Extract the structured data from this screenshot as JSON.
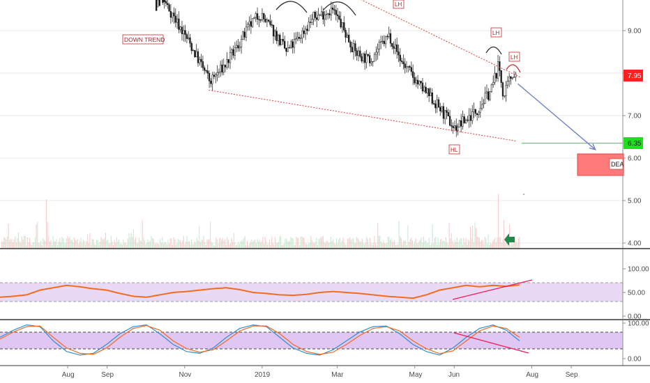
{
  "chart_data": [
    {
      "type": "candlestick",
      "panel": "price",
      "ylim": [
        3.9,
        10.0
      ],
      "x_ticks": [
        "Aug",
        "Sep",
        "Nov",
        "2019",
        "Mar",
        "May",
        "Jun",
        "Aug",
        "Sep"
      ],
      "y_ticks": [
        "9.00",
        "8.00",
        "7.00",
        "6.00",
        "5.00",
        "4.00"
      ],
      "current_price": "7.95",
      "target_price": "6.35",
      "target_box_text": "DEA",
      "annotations": [
        "DOWN TREND",
        "LH",
        "LH",
        "LH",
        "HL"
      ],
      "price_path": [
        {
          "date": "2018-09-12",
          "close": 10.3
        },
        {
          "date": "2018-10-06",
          "close": 10.1
        },
        {
          "date": "2018-10-18",
          "close": 9.6
        },
        {
          "date": "2018-11-05",
          "close": 8.7
        },
        {
          "date": "2018-11-21",
          "close": 7.8
        },
        {
          "date": "2018-12-03",
          "close": 8.2
        },
        {
          "date": "2018-12-12",
          "close": 8.6
        },
        {
          "date": "2018-12-22",
          "close": 9.1
        },
        {
          "date": "2018-12-30",
          "close": 9.4
        },
        {
          "date": "2019-01-12",
          "close": 8.9
        },
        {
          "date": "2019-01-20",
          "close": 8.5
        },
        {
          "date": "2019-01-29",
          "close": 8.8
        },
        {
          "date": "2019-02-10",
          "close": 9.3
        },
        {
          "date": "2019-02-25",
          "close": 9.5
        },
        {
          "date": "2019-03-03",
          "close": 9.2
        },
        {
          "date": "2019-03-15",
          "close": 8.5
        },
        {
          "date": "2019-03-26",
          "close": 8.3
        },
        {
          "date": "2019-04-03",
          "close": 8.6
        },
        {
          "date": "2019-04-11",
          "close": 8.9
        },
        {
          "date": "2019-04-20",
          "close": 8.3
        },
        {
          "date": "2019-05-05",
          "close": 7.7
        },
        {
          "date": "2019-05-20",
          "close": 7.2
        },
        {
          "date": "2019-06-01",
          "close": 6.7
        },
        {
          "date": "2019-06-08",
          "close": 6.85
        },
        {
          "date": "2019-06-18",
          "close": 7.1
        },
        {
          "date": "2019-06-30",
          "close": 7.6
        },
        {
          "date": "2019-07-06",
          "close": 8.2
        },
        {
          "date": "2019-07-10",
          "close": 7.4
        },
        {
          "date": "2019-07-14",
          "close": 7.8
        },
        {
          "date": "2019-07-17",
          "close": 8.0
        },
        {
          "date": "2019-07-20",
          "close": 7.95
        }
      ],
      "trendlines": [
        {
          "from": {
            "date": "2019-02-12",
            "price": 10.25
          },
          "to": {
            "date": "2019-07-23",
            "price": 7.9
          }
        },
        {
          "from": {
            "date": "2018-11-20",
            "price": 7.6
          },
          "to": {
            "date": "2019-07-20",
            "price": 6.4
          }
        }
      ],
      "projection": {
        "from": {
          "date": "2019-07-21",
          "price": 7.75
        },
        "to": {
          "date": "2019-09-20",
          "price": 6.2
        }
      }
    },
    {
      "type": "line",
      "panel": "rsi",
      "ylim": [
        0,
        100
      ],
      "y_ticks": [
        "100.00",
        "50.00",
        "0.00"
      ],
      "band": [
        30,
        70
      ],
      "series": [
        {
          "values": [
            40,
            42,
            45,
            55,
            60,
            65,
            62,
            58,
            55,
            48,
            42,
            40,
            45,
            50,
            52,
            55,
            58,
            60,
            56,
            50,
            48,
            45,
            44,
            46,
            50,
            52,
            50,
            48,
            45,
            42,
            40,
            38,
            45,
            55,
            60,
            65,
            62,
            65,
            63,
            66
          ]
        }
      ]
    },
    {
      "type": "line",
      "panel": "stochastic",
      "ylim": [
        0,
        100
      ],
      "y_ticks": [
        "100.00",
        "0.00"
      ],
      "band": [
        20,
        80
      ],
      "series": [
        {
          "values": [
            60,
            80,
            95,
            90,
            50,
            20,
            10,
            15,
            40,
            70,
            90,
            95,
            70,
            40,
            20,
            15,
            30,
            60,
            85,
            95,
            90,
            60,
            30,
            15,
            10,
            25,
            50,
            75,
            90,
            92,
            70,
            40,
            20,
            10,
            30,
            60,
            85,
            95,
            80,
            50
          ]
        },
        {
          "values": [
            55,
            75,
            90,
            92,
            60,
            30,
            15,
            12,
            30,
            60,
            85,
            93,
            80,
            50,
            28,
            18,
            25,
            50,
            78,
            92,
            92,
            70,
            40,
            20,
            12,
            18,
            40,
            65,
            85,
            90,
            78,
            50,
            28,
            14,
            22,
            50,
            78,
            92,
            85,
            60
          ]
        }
      ]
    }
  ]
}
